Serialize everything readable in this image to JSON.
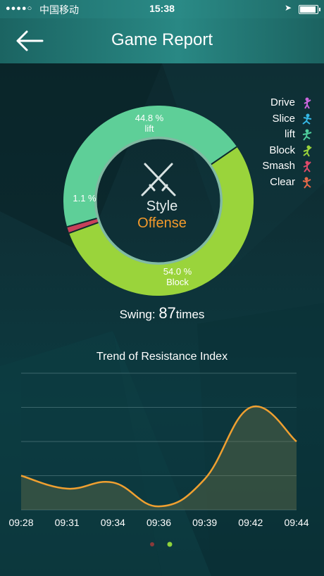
{
  "status_bar": {
    "signal": "●●●●○",
    "carrier": "中国移动",
    "time": "15:38",
    "location_icon": "location-arrow-icon",
    "battery_level": 0.9
  },
  "header": {
    "back_icon": "back-arrow-icon",
    "title": "Game Report"
  },
  "style_chart": {
    "type": "pie",
    "segments": [
      {
        "name": "lift",
        "percent": 44.8,
        "percent_label": "44.8 %",
        "color": "#5ecf98"
      },
      {
        "name": "Block",
        "percent": 54.0,
        "percent_label": "54.0 %",
        "color": "#9ad43b"
      },
      {
        "name": "Smash",
        "percent": 1.1,
        "percent_label": "1.1 %",
        "color": "#c9405a"
      }
    ],
    "center_icon": "crossed-swords-icon",
    "style_label": "Style",
    "style_value": "Offense",
    "style_value_color": "#f39a2b"
  },
  "legend": [
    {
      "label": "Drive",
      "icon": "player-drive-icon",
      "color": "#cc66dd"
    },
    {
      "label": "Slice",
      "icon": "player-slice-icon",
      "color": "#35b8e6"
    },
    {
      "label": "lift",
      "icon": "player-lift-icon",
      "color": "#4fcf9e"
    },
    {
      "label": "Block",
      "icon": "player-block-icon",
      "color": "#9ad43b"
    },
    {
      "label": "Smash",
      "icon": "player-smash-icon",
      "color": "#e04a6a"
    },
    {
      "label": "Clear",
      "icon": "player-clear-icon",
      "color": "#e86a4a"
    }
  ],
  "swing": {
    "label": "Swing: ",
    "count": "87",
    "unit": "times"
  },
  "chart_data": {
    "type": "area",
    "title": "Trend of Resistance Index",
    "x": [
      "09:28",
      "09:31",
      "09:34",
      "09:36",
      "09:39",
      "09:42",
      "09:44"
    ],
    "values": [
      1.0,
      0.62,
      0.8,
      0.1,
      0.9,
      3.0,
      2.0
    ],
    "ylim": [
      0,
      4
    ],
    "grid": true,
    "line_color": "#f0a030"
  },
  "pager": {
    "count": 2,
    "active_index": 1,
    "colors": [
      "#8a3a3a",
      "#8fd43b"
    ]
  }
}
